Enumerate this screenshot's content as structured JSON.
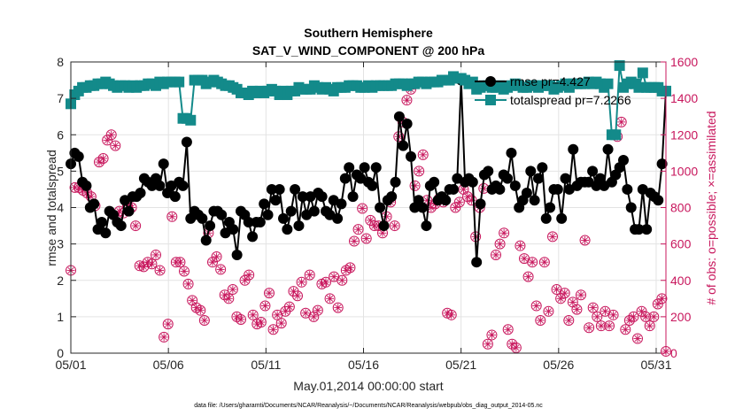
{
  "chart_data": {
    "type": "line",
    "title": "Southern Hemisphere",
    "subtitle": "SAT_V_WIND_COMPONENT @ 200 hPa",
    "xlabel": "May.01,2014 00:00:00 start",
    "ylabel": "rmse and totalspread",
    "ylabel_right": "# of obs: o=possible; ×=assimilated",
    "footnote": "data file: /Users/gharamti/Documents/NCAR/Reanalysis/~/Documents/NCAR/Reanalysis/webpub/obs_diag_output_2014-05.nc",
    "xlim": [
      0,
      30.5
    ],
    "ylim": [
      0,
      8
    ],
    "ylim_right": [
      0,
      1600
    ],
    "x_ticks": [
      0,
      5,
      10,
      15,
      20,
      25,
      30
    ],
    "x_tick_labels": [
      "05/01",
      "05/06",
      "05/11",
      "05/16",
      "05/21",
      "05/26",
      "05/31"
    ],
    "y_ticks": [
      "0",
      "1",
      "2",
      "3",
      "4",
      "5",
      "6",
      "7",
      "8"
    ],
    "y_ticks_right": [
      "0",
      "200",
      "400",
      "600",
      "800",
      "1000",
      "1200",
      "1400",
      "1600"
    ],
    "grid": true,
    "legend_position": "top-right",
    "colors": {
      "rmse": "#000000",
      "spread": "#138a8a",
      "obs": "#c8175d",
      "axes": "#262626"
    },
    "series": [
      {
        "name": "rmse pr=4.427",
        "axis": "left",
        "values": [
          5.2,
          5.5,
          5.4,
          4.7,
          4.6,
          4.0,
          4.1,
          3.4,
          3.6,
          3.3,
          3.9,
          3.8,
          3.6,
          3.5,
          4.2,
          3.9,
          4.3,
          4.3,
          4.4,
          4.8,
          4.7,
          4.6,
          4.8,
          4.6,
          5.2,
          4.4,
          4.6,
          4.3,
          4.7,
          4.6,
          5.8,
          3.7,
          3.9,
          3.8,
          3.7,
          3.1,
          3.5,
          3.9,
          3.9,
          3.8,
          3.3,
          3.6,
          3.4,
          2.7,
          3.9,
          3.8,
          3.6,
          3.2,
          3.6,
          3.6,
          4.1,
          3.8,
          4.5,
          4.2,
          4.5,
          3.7,
          3.4,
          3.9,
          4.5,
          3.5,
          4.3,
          3.8,
          4.3,
          3.9,
          4.4,
          4.3,
          3.9,
          3.8,
          4.2,
          3.7,
          4.1,
          4.8,
          5.1,
          4.3,
          4.9,
          4.8,
          5.1,
          4.7,
          4.6,
          5.1,
          4.0,
          3.5,
          4.2,
          4.3,
          4.7,
          6.5,
          5.7,
          6.3,
          5.4,
          4.0,
          4.2,
          4.0,
          3.5,
          4.6,
          4.7,
          4.2,
          4.3,
          4.2,
          4.5,
          4.5,
          4.8,
          7.5,
          4.7,
          4.8,
          4.7,
          2.5,
          4.1,
          4.9,
          5.0,
          4.5,
          4.6,
          4.5,
          4.9,
          4.8,
          5.5,
          4.6,
          4.0,
          4.2,
          4.4,
          5.0,
          4.2,
          4.8,
          5.1,
          3.7,
          4.0,
          4.5,
          4.5,
          3.7,
          4.8,
          4.5,
          5.6,
          4.6,
          4.7,
          4.7,
          4.7,
          5.0,
          4.6,
          4.8,
          4.6,
          5.6,
          4.7,
          4.9,
          5.1,
          5.3,
          4.5,
          4.0,
          3.4,
          3.4,
          4.5,
          3.4,
          4.4,
          4.3,
          4.2,
          5.2,
          7.2
        ]
      },
      {
        "name": "totalspread pr=7.2266",
        "axis": "left",
        "values": [
          6.85,
          7.1,
          7.2,
          7.3,
          7.3,
          7.35,
          7.35,
          7.4,
          7.4,
          7.45,
          7.4,
          7.35,
          7.3,
          7.35,
          7.35,
          7.3,
          7.35,
          7.3,
          7.35,
          7.35,
          7.4,
          7.4,
          7.35,
          7.45,
          7.4,
          7.45,
          7.45,
          7.45,
          7.45,
          6.45,
          6.45,
          6.4,
          7.5,
          7.5,
          7.5,
          7.4,
          7.45,
          7.5,
          7.45,
          7.4,
          7.35,
          7.35,
          7.3,
          7.25,
          7.15,
          7.15,
          7.1,
          7.2,
          7.15,
          7.2,
          7.15,
          7.2,
          7.25,
          7.2,
          7.1,
          7.2,
          7.1,
          7.2,
          7.2,
          7.3,
          7.25,
          7.25,
          7.25,
          7.35,
          7.3,
          7.25,
          7.3,
          7.25,
          7.2,
          7.3,
          7.3,
          7.3,
          7.35,
          7.35,
          7.35,
          7.3,
          7.3,
          7.35,
          7.3,
          7.35,
          7.35,
          7.35,
          7.35,
          7.35,
          7.4,
          7.4,
          7.4,
          7.35,
          7.4,
          7.4,
          7.45,
          7.45,
          7.4,
          7.45,
          7.45,
          7.45,
          7.5,
          7.5,
          7.5,
          7.6,
          7.55,
          7.55,
          7.5,
          7.4,
          7.45,
          7.25,
          7.3,
          7.35,
          7.35,
          7.3,
          7.3,
          7.35,
          7.25,
          7.3,
          7.35,
          7.4,
          7.35,
          7.3,
          7.3,
          7.35,
          7.35,
          7.3,
          7.35,
          7.35,
          7.35,
          7.25,
          7.3,
          7.35,
          7.4,
          7.3,
          7.4,
          7.4,
          7.4,
          7.4,
          7.45,
          7.4,
          7.45,
          7.4,
          7.3,
          7.4,
          6.0,
          6.0,
          7.9,
          7.3,
          7.4,
          7.45,
          7.4,
          7.3,
          7.7,
          7.3,
          7.3,
          7.3,
          7.3,
          7.2,
          7.2
        ]
      },
      {
        "name": "obs possible",
        "axis": "right",
        "values": [
          455,
          910,
          910,
          895,
          880,
          860,
          810,
          1050,
          1070,
          1170,
          1200,
          1140,
          780,
          770,
          810,
          800,
          700,
          480,
          475,
          500,
          490,
          540,
          455,
          88,
          160,
          750,
          500,
          500,
          450,
          380,
          290,
          250,
          235,
          180,
          660,
          500,
          530,
          460,
          320,
          300,
          350,
          200,
          185,
          400,
          430,
          210,
          160,
          170,
          260,
          330,
          130,
          210,
          165,
          230,
          255,
          340,
          315,
          390,
          220,
          430,
          200,
          235,
          380,
          390,
          300,
          420,
          250,
          400,
          455,
          470,
          615,
          680,
          795,
          630,
          730,
          700,
          700,
          660,
          750,
          830,
          700,
          1190,
          1270,
          1390,
          1450,
          920,
          1000,
          1090,
          840,
          800,
          820,
          850,
          830,
          220,
          210,
          800,
          830,
          900,
          860,
          840,
          640,
          800,
          905,
          50,
          100,
          540,
          600,
          660,
          130,
          50,
          30,
          590,
          520,
          420,
          500,
          260,
          180,
          500,
          230,
          640,
          350,
          300,
          330,
          180,
          280,
          240,
          320,
          620,
          140,
          250,
          200,
          150,
          230,
          150,
          210,
          1190,
          1270,
          130,
          180,
          200,
          80,
          230,
          200,
          150,
          200,
          270,
          300,
          10
        ]
      }
    ],
    "legend": [
      {
        "label": "rmse pr=4.427"
      },
      {
        "label": "totalspread pr=7.2266"
      }
    ]
  }
}
